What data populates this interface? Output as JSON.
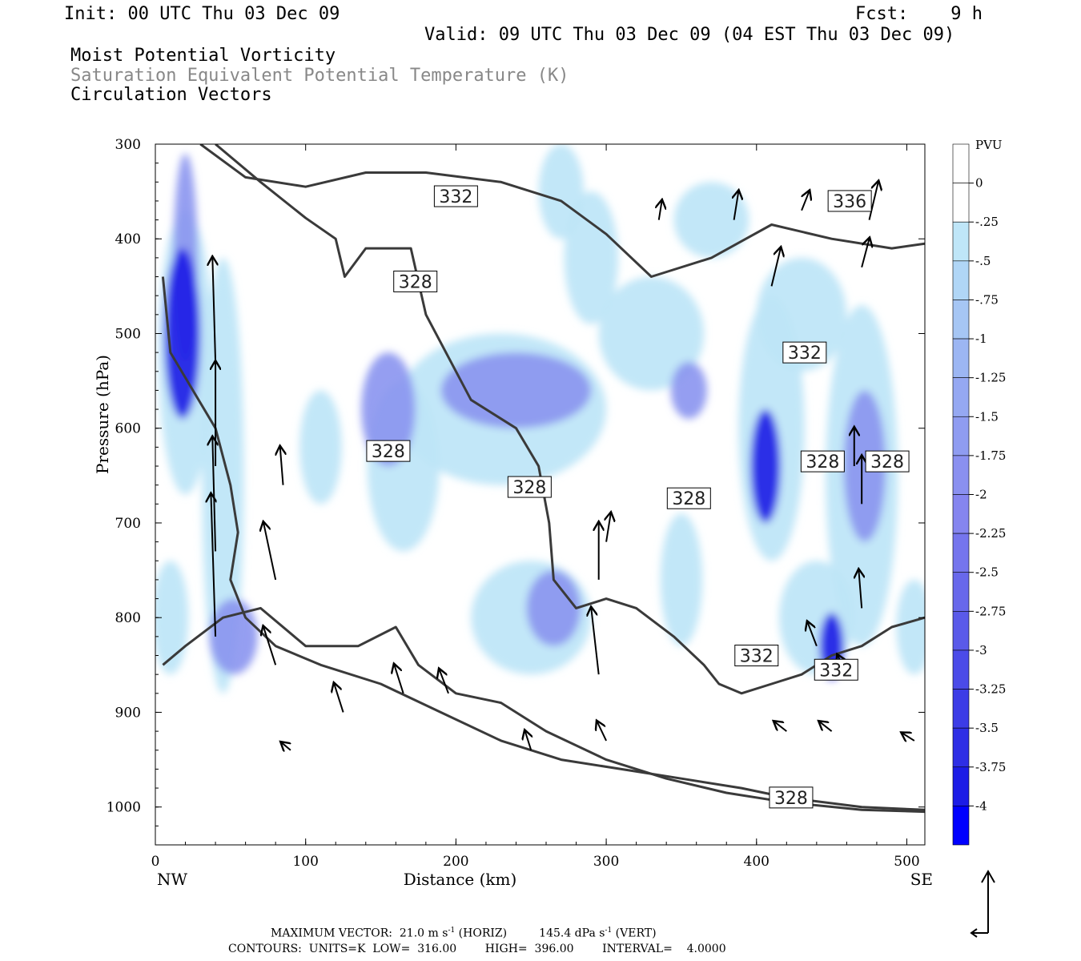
{
  "header": {
    "init": "Init: 00 UTC Thu 03 Dec 09",
    "fcst": "Fcst:    9 h",
    "valid": "Valid: 09 UTC Thu 03 Dec 09 (04 EST Thu 03 Dec 09)",
    "fields": [
      "Moist Potential Vorticity",
      "Saturation Equivalent Potential Temperature (K)",
      "Circulation Vectors"
    ]
  },
  "colors": {
    "shade_light": "#bfe6f8",
    "shade_mid": "#8a93f0",
    "shade_dark": "#1c1ce6",
    "contour": "#3a3a3a"
  },
  "footer": {
    "max_vector_label": "MAXIMUM VECTOR:",
    "max_vector_horiz": "21.0 m s",
    "horiz_unit_sup": "-1",
    "horiz_suffix": "(HORIZ)",
    "max_vector_vert": "145.4 dPa s",
    "vert_unit_sup": "-1",
    "vert_suffix": "(VERT)",
    "contours": "CONTOURS:  UNITS=K  LOW=  316.00        HIGH=  396.00        INTERVAL=    4.0000"
  },
  "chart_data": {
    "type": "cross-section",
    "xlabel": "Distance (km)",
    "ylabel": "Pressure (hPa)",
    "xlim": [
      0,
      512
    ],
    "ylim": [
      1040,
      300
    ],
    "x_ticks": [
      0,
      100,
      200,
      300,
      400,
      500
    ],
    "y_ticks": [
      300,
      400,
      500,
      600,
      700,
      800,
      900,
      1000
    ],
    "x_end_labels": {
      "left": "NW",
      "right": "SE"
    },
    "colorbar": {
      "unit": "PVU",
      "labels": [
        "0",
        "-.25",
        "-.5",
        "-.75",
        "-1",
        "-1.25",
        "-1.5",
        "-1.75",
        "-2",
        "-2.25",
        "-2.5",
        "-2.75",
        "-3",
        "-3.25",
        "-3.5",
        "-3.75",
        "-4"
      ],
      "colors": [
        "#ffffff",
        "#ffffff",
        "#bfe6f8",
        "#b0d6f6",
        "#a6c6f4",
        "#9cb6f3",
        "#95a8f2",
        "#8f9cf1",
        "#8a90f0",
        "#8585ef",
        "#7575ed",
        "#6868eb",
        "#5a5ae9",
        "#4b4be8",
        "#3c3ce6",
        "#2e2ee5",
        "#1c1ce6",
        "#0000ff"
      ]
    },
    "contour_labels": [
      {
        "text": "332",
        "x": 200,
        "p": 355
      },
      {
        "text": "336",
        "x": 462,
        "p": 360
      },
      {
        "text": "328",
        "x": 173,
        "p": 445
      },
      {
        "text": "332",
        "x": 432,
        "p": 520
      },
      {
        "text": "328",
        "x": 155,
        "p": 624
      },
      {
        "text": "328",
        "x": 249,
        "p": 662
      },
      {
        "text": "328",
        "x": 355,
        "p": 674
      },
      {
        "text": "328",
        "x": 444,
        "p": 635
      },
      {
        "text": "328",
        "x": 487,
        "p": 635
      },
      {
        "text": "332",
        "x": 400,
        "p": 840
      },
      {
        "text": "332",
        "x": 453,
        "p": 855
      },
      {
        "text": "328",
        "x": 423,
        "p": 990
      }
    ],
    "pv_blobs": [
      {
        "x": 18,
        "p": 500,
        "rx": 12,
        "rp": 90,
        "level": 3
      },
      {
        "x": 20,
        "p": 420,
        "rx": 8,
        "rp": 110,
        "level": 2
      },
      {
        "x": 20,
        "p": 520,
        "rx": 18,
        "rp": 150,
        "level": 1
      },
      {
        "x": 45,
        "p": 650,
        "rx": 14,
        "rp": 230,
        "level": 1
      },
      {
        "x": 52,
        "p": 820,
        "rx": 16,
        "rp": 40,
        "level": 2
      },
      {
        "x": 10,
        "p": 800,
        "rx": 12,
        "rp": 60,
        "level": 1
      },
      {
        "x": 110,
        "p": 620,
        "rx": 14,
        "rp": 60,
        "level": 1
      },
      {
        "x": 155,
        "p": 580,
        "rx": 18,
        "rp": 60,
        "level": 2
      },
      {
        "x": 165,
        "p": 640,
        "rx": 24,
        "rp": 90,
        "level": 1
      },
      {
        "x": 240,
        "p": 560,
        "rx": 50,
        "rp": 40,
        "level": 2
      },
      {
        "x": 230,
        "p": 580,
        "rx": 70,
        "rp": 80,
        "level": 1
      },
      {
        "x": 265,
        "p": 790,
        "rx": 18,
        "rp": 40,
        "level": 2
      },
      {
        "x": 250,
        "p": 800,
        "rx": 40,
        "rp": 60,
        "level": 1
      },
      {
        "x": 290,
        "p": 420,
        "rx": 18,
        "rp": 70,
        "level": 1
      },
      {
        "x": 270,
        "p": 350,
        "rx": 15,
        "rp": 50,
        "level": 1
      },
      {
        "x": 330,
        "p": 500,
        "rx": 35,
        "rp": 60,
        "level": 1
      },
      {
        "x": 355,
        "p": 560,
        "rx": 12,
        "rp": 30,
        "level": 2
      },
      {
        "x": 350,
        "p": 760,
        "rx": 14,
        "rp": 70,
        "level": 1
      },
      {
        "x": 406,
        "p": 640,
        "rx": 10,
        "rp": 60,
        "level": 3
      },
      {
        "x": 410,
        "p": 600,
        "rx": 22,
        "rp": 140,
        "level": 1
      },
      {
        "x": 430,
        "p": 480,
        "rx": 30,
        "rp": 60,
        "level": 1
      },
      {
        "x": 450,
        "p": 830,
        "rx": 8,
        "rp": 35,
        "level": 3
      },
      {
        "x": 440,
        "p": 800,
        "rx": 25,
        "rp": 60,
        "level": 1
      },
      {
        "x": 472,
        "p": 640,
        "rx": 14,
        "rp": 80,
        "level": 2
      },
      {
        "x": 470,
        "p": 650,
        "rx": 24,
        "rp": 180,
        "level": 1
      },
      {
        "x": 505,
        "p": 810,
        "rx": 12,
        "rp": 50,
        "level": 1
      },
      {
        "x": 370,
        "p": 380,
        "rx": 25,
        "rp": 40,
        "level": 1
      }
    ],
    "contours": [
      [
        [
          30,
          300
        ],
        [
          60,
          335
        ],
        [
          100,
          345
        ],
        [
          140,
          330
        ],
        [
          180,
          330
        ],
        [
          230,
          340
        ],
        [
          270,
          360
        ],
        [
          300,
          395
        ],
        [
          330,
          440
        ],
        [
          370,
          420
        ],
        [
          410,
          385
        ],
        [
          450,
          400
        ],
        [
          490,
          410
        ],
        [
          512,
          405
        ]
      ],
      [
        [
          40,
          300
        ],
        [
          70,
          340
        ],
        [
          100,
          378
        ],
        [
          120,
          400
        ],
        [
          126,
          440
        ],
        [
          140,
          410
        ],
        [
          170,
          410
        ],
        [
          180,
          480
        ],
        [
          210,
          570
        ],
        [
          240,
          600
        ],
        [
          255,
          640
        ],
        [
          262,
          700
        ],
        [
          265,
          760
        ],
        [
          280,
          790
        ],
        [
          300,
          780
        ],
        [
          320,
          790
        ],
        [
          345,
          820
        ],
        [
          365,
          850
        ],
        [
          375,
          870
        ],
        [
          390,
          880
        ],
        [
          410,
          870
        ],
        [
          430,
          860
        ],
        [
          450,
          840
        ],
        [
          470,
          830
        ],
        [
          490,
          810
        ],
        [
          512,
          800
        ]
      ],
      [
        [
          5,
          440
        ],
        [
          10,
          520
        ],
        [
          25,
          560
        ],
        [
          40,
          600
        ],
        [
          50,
          660
        ],
        [
          55,
          710
        ],
        [
          50,
          760
        ],
        [
          60,
          800
        ],
        [
          80,
          830
        ],
        [
          110,
          850
        ],
        [
          150,
          870
        ],
        [
          190,
          900
        ],
        [
          230,
          930
        ],
        [
          270,
          950
        ],
        [
          310,
          960
        ],
        [
          350,
          970
        ],
        [
          390,
          980
        ],
        [
          420,
          990
        ],
        [
          470,
          1000
        ],
        [
          512,
          1003
        ]
      ],
      [
        [
          5,
          850
        ],
        [
          20,
          830
        ],
        [
          45,
          800
        ],
        [
          70,
          790
        ],
        [
          100,
          830
        ],
        [
          135,
          830
        ],
        [
          160,
          810
        ],
        [
          175,
          850
        ],
        [
          200,
          880
        ],
        [
          230,
          890
        ],
        [
          260,
          920
        ],
        [
          300,
          950
        ],
        [
          340,
          970
        ],
        [
          380,
          985
        ],
        [
          420,
          995
        ],
        [
          470,
          1003
        ],
        [
          512,
          1005
        ]
      ]
    ],
    "vectors": [
      {
        "x": 40,
        "p": 640,
        "dx": 0,
        "dp": -110
      },
      {
        "x": 40,
        "p": 530,
        "dx": -2,
        "dp": -110
      },
      {
        "x": 40,
        "p": 820,
        "dx": -3,
        "dp": -150
      },
      {
        "x": 40,
        "p": 730,
        "dx": -2,
        "dp": -120
      },
      {
        "x": 80,
        "p": 850,
        "dx": -8,
        "dp": -40
      },
      {
        "x": 80,
        "p": 760,
        "dx": -8,
        "dp": -60
      },
      {
        "x": 85,
        "p": 660,
        "dx": -2,
        "dp": -40
      },
      {
        "x": 125,
        "p": 900,
        "dx": -6,
        "dp": -30
      },
      {
        "x": 165,
        "p": 880,
        "dx": -6,
        "dp": -30
      },
      {
        "x": 195,
        "p": 880,
        "dx": -6,
        "dp": -25
      },
      {
        "x": 295,
        "p": 860,
        "dx": -5,
        "dp": -70
      },
      {
        "x": 295,
        "p": 760,
        "dx": 0,
        "dp": -60
      },
      {
        "x": 300,
        "p": 720,
        "dx": 3,
        "dp": -30
      },
      {
        "x": 335,
        "p": 380,
        "dx": 2,
        "dp": -20
      },
      {
        "x": 385,
        "p": 380,
        "dx": 3,
        "dp": -30
      },
      {
        "x": 410,
        "p": 450,
        "dx": 6,
        "dp": -40
      },
      {
        "x": 430,
        "p": 370,
        "dx": 5,
        "dp": -20
      },
      {
        "x": 470,
        "p": 430,
        "dx": 5,
        "dp": -30
      },
      {
        "x": 475,
        "p": 380,
        "dx": 6,
        "dp": -40
      },
      {
        "x": 470,
        "p": 680,
        "dx": 0,
        "dp": -50
      },
      {
        "x": 465,
        "p": 640,
        "dx": 0,
        "dp": -40
      },
      {
        "x": 470,
        "p": 790,
        "dx": -2,
        "dp": -40
      },
      {
        "x": 460,
        "p": 860,
        "dx": -6,
        "dp": -20
      },
      {
        "x": 440,
        "p": 830,
        "dx": -6,
        "dp": -25
      },
      {
        "x": 300,
        "p": 930,
        "dx": -6,
        "dp": -20
      },
      {
        "x": 250,
        "p": 940,
        "dx": -4,
        "dp": -20
      },
      {
        "x": 420,
        "p": 920,
        "dx": -8,
        "dp": -10
      },
      {
        "x": 450,
        "p": 920,
        "dx": -8,
        "dp": -10
      },
      {
        "x": 505,
        "p": 930,
        "dx": -8,
        "dp": -8
      },
      {
        "x": 90,
        "p": 940,
        "dx": -6,
        "dp": -8
      }
    ]
  }
}
